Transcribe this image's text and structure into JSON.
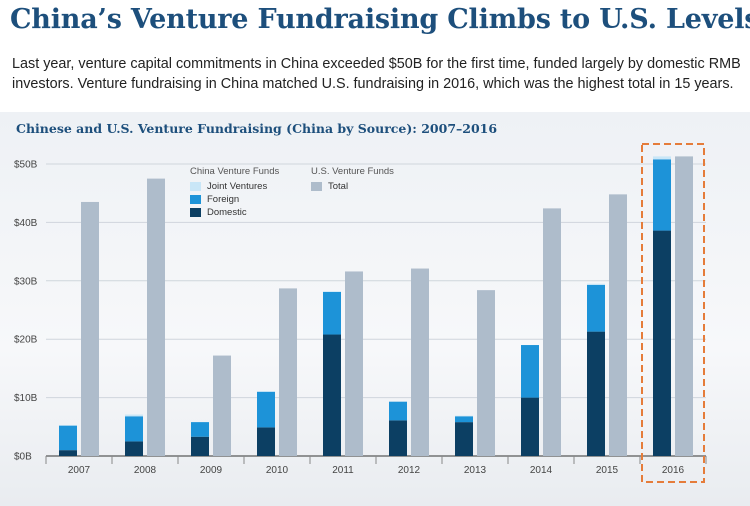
{
  "header": {
    "title": "China’s Venture Fundraising Climbs to U.S. Levels",
    "subtitle": "Last year, venture capital commitments in China exceeded $50B for the first time, funded largely by domestic RMB investors. Venture fundraising in China matched U.S. fundraising in 2016, which was the highest total in 15 years."
  },
  "legend": {
    "china_heading": "China Venture Funds",
    "us_heading": "U.S. Venture Funds",
    "items": [
      {
        "label": "Joint Ventures",
        "color": "#c9e6f7"
      },
      {
        "label": "Foreign",
        "color": "#1d93d8"
      },
      {
        "label": "Domestic",
        "color": "#0c3f63"
      },
      {
        "label": "Total",
        "color": "#aebccb"
      }
    ]
  },
  "chart_data": {
    "type": "bar",
    "title": "Chinese and U.S. Venture Fundraising (China by Source): 2007–2016",
    "categories": [
      "2007",
      "2008",
      "2009",
      "2010",
      "2011",
      "2012",
      "2013",
      "2014",
      "2015",
      "2016"
    ],
    "series": [
      {
        "name": "Domestic",
        "group": "China Venture Funds",
        "stack": "china",
        "color": "#0c3f63",
        "values": [
          1.0,
          2.5,
          3.3,
          4.9,
          20.8,
          6.1,
          5.8,
          10.0,
          21.3,
          38.6
        ]
      },
      {
        "name": "Foreign",
        "group": "China Venture Funds",
        "stack": "china",
        "color": "#1d93d8",
        "values": [
          4.2,
          4.3,
          2.5,
          6.1,
          7.3,
          3.2,
          1.0,
          9.0,
          8.0,
          12.2
        ]
      },
      {
        "name": "Joint Ventures",
        "group": "China Venture Funds",
        "stack": "china",
        "color": "#c9e6f7",
        "values": [
          0.1,
          0.3,
          0.0,
          0.1,
          0.1,
          0.0,
          0.1,
          0.0,
          0.2,
          0.5
        ]
      },
      {
        "name": "Total",
        "group": "U.S. Venture Funds",
        "stack": "us",
        "color": "#aebccb",
        "values": [
          43.5,
          47.5,
          17.2,
          28.7,
          31.6,
          32.1,
          28.4,
          42.4,
          44.8,
          51.3
        ]
      }
    ],
    "yticks": [
      "$0B",
      "$10B",
      "$20B",
      "$30B",
      "$40B",
      "$50B"
    ],
    "ylim": [
      0,
      50
    ],
    "grid": true,
    "legend_position": "top-left",
    "highlight_category": "2016",
    "highlight_color": "#e57c3a"
  }
}
